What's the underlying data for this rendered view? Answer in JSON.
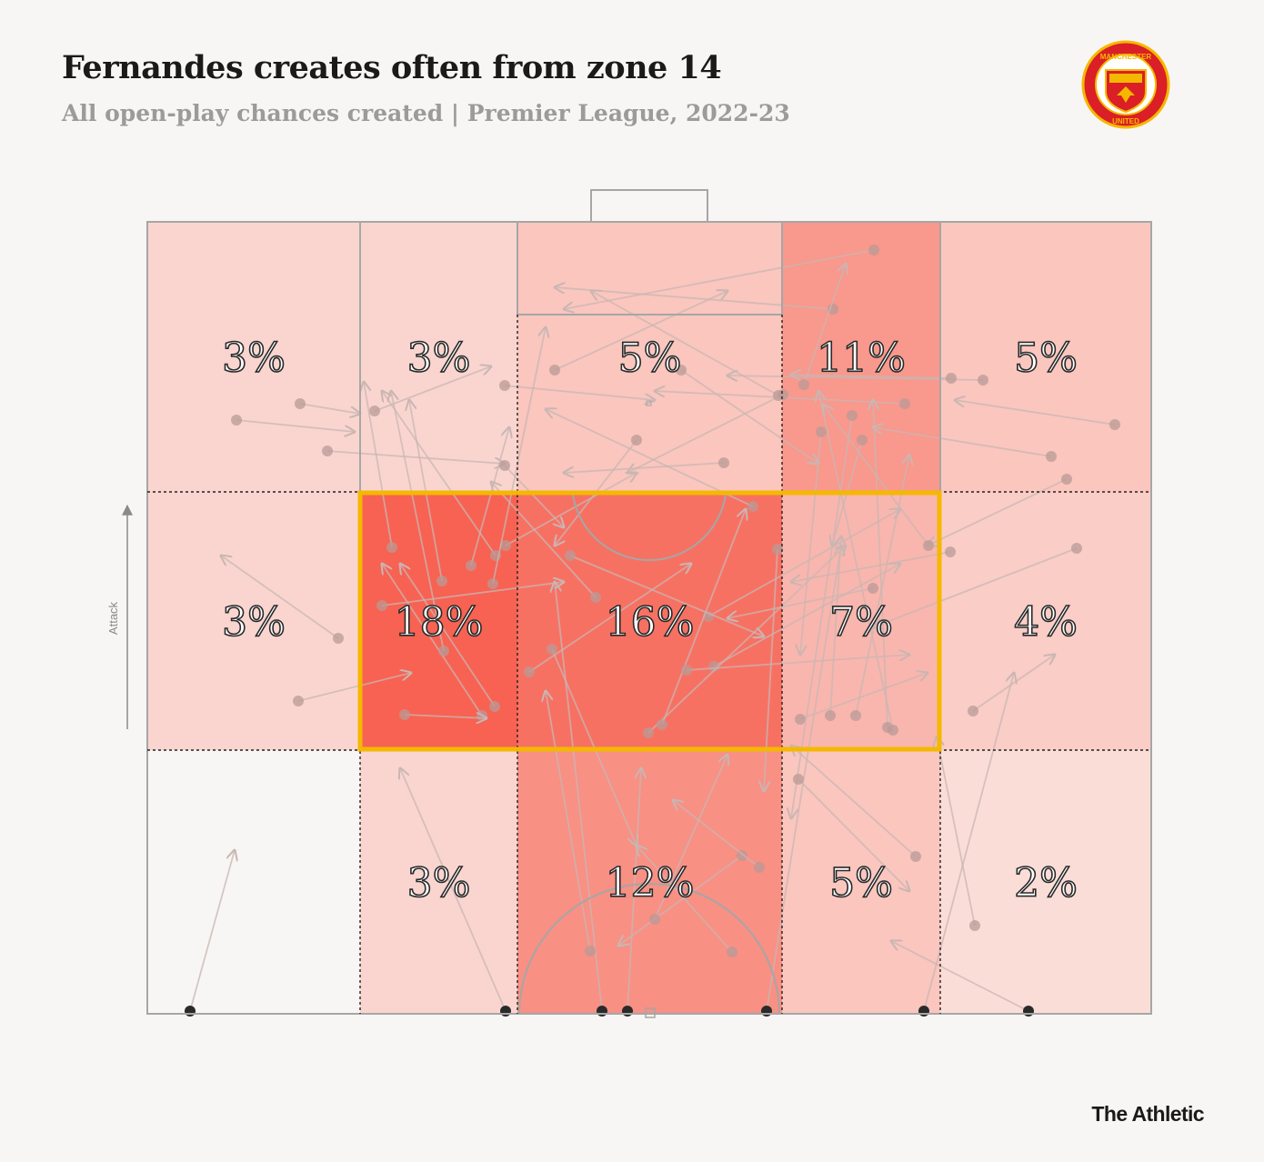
{
  "header": {
    "title": "Fernandes creates often from zone 14",
    "subtitle": "All open-play chances created | Premier League, 2022-23"
  },
  "footer": {
    "brand": "The Athletic"
  },
  "logo": {
    "icon": "manchester-united-crest-icon",
    "text_top": "MANCHESTER",
    "text_bottom": "UNITED"
  },
  "axis": {
    "attack_label": "Attack"
  },
  "colors": {
    "background": "#f8f6f4",
    "pitch_line": "#a6a6a6",
    "highlight": "#f5b800",
    "heat_low": "#fbe9e6",
    "heat_high": "#f7695a",
    "arrow": "#c9b6b3",
    "dot": "#b99a96"
  },
  "chart_data": {
    "type": "heatmap",
    "title": "Fernandes creates often from zone 14",
    "subtitle": "All open-play chances created | Premier League, 2022-23",
    "columns": 5,
    "rows": 3,
    "highlight": "zone 14",
    "highlighted_cells": [
      [
        1,
        1
      ],
      [
        1,
        2
      ],
      [
        1,
        3
      ]
    ],
    "cells": [
      {
        "row": 0,
        "col": 0,
        "label": "3%",
        "value": 3
      },
      {
        "row": 0,
        "col": 1,
        "label": "3%",
        "value": 3
      },
      {
        "row": 0,
        "col": 2,
        "label": "5%",
        "value": 5
      },
      {
        "row": 0,
        "col": 3,
        "label": "11%",
        "value": 11
      },
      {
        "row": 0,
        "col": 4,
        "label": "5%",
        "value": 5
      },
      {
        "row": 1,
        "col": 0,
        "label": "3%",
        "value": 3
      },
      {
        "row": 1,
        "col": 1,
        "label": "18%",
        "value": 18
      },
      {
        "row": 1,
        "col": 2,
        "label": "16%",
        "value": 16
      },
      {
        "row": 1,
        "col": 3,
        "label": "7%",
        "value": 7
      },
      {
        "row": 1,
        "col": 4,
        "label": "4%",
        "value": 4
      },
      {
        "row": 2,
        "col": 0,
        "label": "",
        "value": 0
      },
      {
        "row": 2,
        "col": 1,
        "label": "3%",
        "value": 3
      },
      {
        "row": 2,
        "col": 2,
        "label": "12%",
        "value": 12
      },
      {
        "row": 2,
        "col": 3,
        "label": "5%",
        "value": 5
      },
      {
        "row": 2,
        "col": 4,
        "label": "2%",
        "value": 2
      }
    ]
  }
}
